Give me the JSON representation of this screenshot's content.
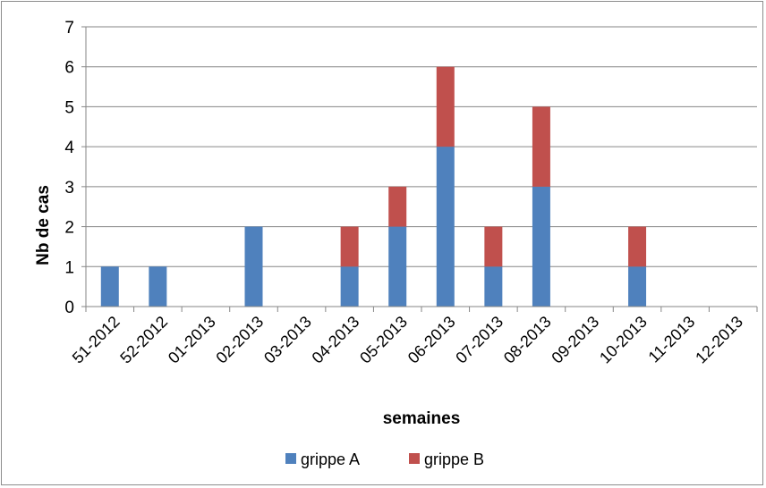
{
  "chart_data": {
    "type": "bar",
    "stacked": true,
    "title": "",
    "xlabel": "semaines",
    "ylabel": "Nb de cas",
    "ylim": [
      0,
      7
    ],
    "yticks": [
      "0",
      "1",
      "2",
      "3",
      "4",
      "5",
      "6",
      "7"
    ],
    "grid": true,
    "legend_position": "bottom",
    "categories": [
      "51-2012",
      "52-2012",
      "01-2013",
      "02-2013",
      "03-2013",
      "04-2013",
      "05-2013",
      "06-2013",
      "07-2013",
      "08-2013",
      "09-2013",
      "10-2013",
      "11-2013",
      "12-2013"
    ],
    "series": [
      {
        "name": "grippe A",
        "color": "#4f81bd",
        "values": [
          1,
          1,
          0,
          2,
          0,
          1,
          2,
          4,
          1,
          3,
          0,
          1,
          0,
          0
        ]
      },
      {
        "name": "grippe B",
        "color": "#c0504d",
        "values": [
          0,
          0,
          0,
          0,
          0,
          1,
          1,
          2,
          1,
          2,
          0,
          1,
          0,
          0
        ]
      }
    ]
  }
}
